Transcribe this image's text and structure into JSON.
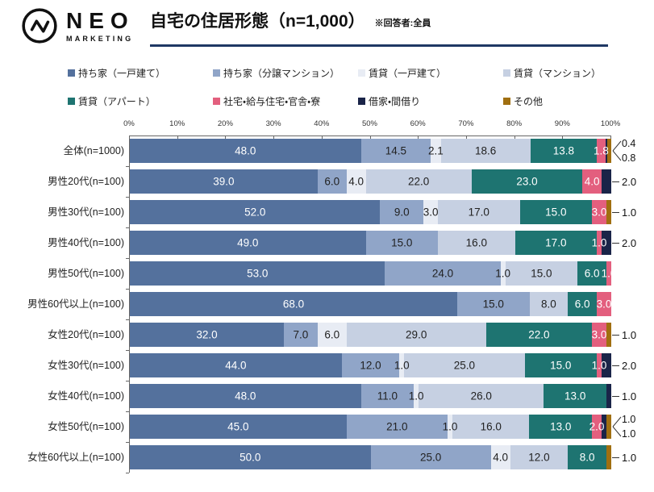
{
  "header": {
    "logo_text": "NEO",
    "logo_subtext": "MARKETING",
    "title": "自宅の住居形態（n=1,000）",
    "note": "※回答者:全員"
  },
  "chart_data": {
    "type": "bar",
    "variant": "horizontal-stacked-100pct",
    "unit": "%",
    "xlim": [
      0,
      100
    ],
    "x_ticks": [
      "0%",
      "10%",
      "20%",
      "30%",
      "40%",
      "50%",
      "60%",
      "70%",
      "80%",
      "90%",
      "100%"
    ],
    "legend_position": "top",
    "grid": false,
    "accent_color": "#1F3864",
    "categories": [
      "全体(n=1000)",
      "男性20代(n=100)",
      "男性30代(n=100)",
      "男性40代(n=100)",
      "男性50代(n=100)",
      "男性60代以上(n=100)",
      "女性20代(n=100)",
      "女性30代(n=100)",
      "女性40代(n=100)",
      "女性50代(n=100)",
      "女性60代以上(n=100)"
    ],
    "series": [
      {
        "name": "持ち家（一戸建て）",
        "color": "#54719D",
        "label_color": "#ffffff",
        "values": [
          48.0,
          39.0,
          52.0,
          49.0,
          53.0,
          68.0,
          32.0,
          44.0,
          48.0,
          45.0,
          50.0
        ]
      },
      {
        "name": "持ち家（分譲マンション）",
        "color": "#90A5C8",
        "label_color": "#222222",
        "values": [
          14.5,
          6.0,
          9.0,
          15.0,
          24.0,
          15.0,
          7.0,
          12.0,
          11.0,
          21.0,
          25.0
        ]
      },
      {
        "name": "賃貸（一戸建て）",
        "color": "#E8ECF4",
        "label_color": "#222222",
        "values": [
          2.1,
          4.0,
          3.0,
          0,
          1.0,
          0,
          6.0,
          1.0,
          1.0,
          1.0,
          4.0
        ]
      },
      {
        "name": "賃貸（マンション）",
        "color": "#C6D0E2",
        "label_color": "#222222",
        "values": [
          18.6,
          22.0,
          17.0,
          16.0,
          15.0,
          8.0,
          29.0,
          25.0,
          26.0,
          16.0,
          12.0
        ]
      },
      {
        "name": "賃貸（アパート）",
        "color": "#1E7471",
        "label_color": "#ffffff",
        "values": [
          13.8,
          23.0,
          15.0,
          17.0,
          6.0,
          6.0,
          22.0,
          15.0,
          13.0,
          13.0,
          8.0
        ]
      },
      {
        "name": "社宅・給与住宅・官舎・寮",
        "color": "#E35F7E",
        "label_color": "#ffffff",
        "values": [
          1.8,
          4.0,
          3.0,
          1.0,
          1.0,
          3.0,
          3.0,
          1.0,
          0,
          2.0,
          0
        ]
      },
      {
        "name": "借家・間借り",
        "color": "#1A2448",
        "label_color": "#ffffff",
        "values": [
          0.4,
          2.0,
          0,
          2.0,
          0,
          0,
          0,
          2.0,
          1.0,
          1.0,
          0
        ]
      },
      {
        "name": "その他",
        "color": "#A06F10",
        "label_color": "#ffffff",
        "values": [
          0.8,
          0,
          1.0,
          0,
          0,
          0,
          1.0,
          0,
          0,
          1.0,
          1.0
        ]
      }
    ],
    "callout_series_indexes": [
      6,
      7
    ]
  }
}
